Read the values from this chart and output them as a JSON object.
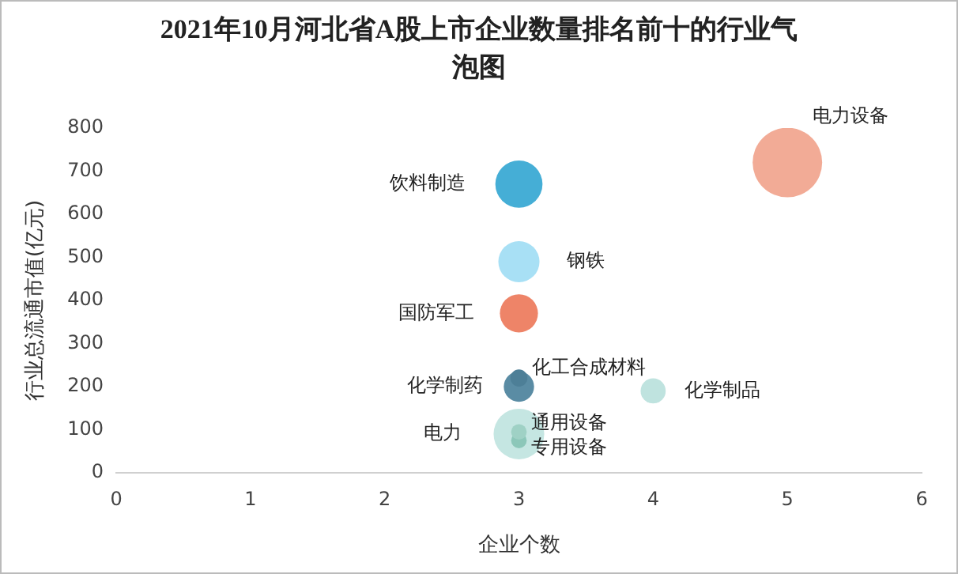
{
  "chart_data": {
    "type": "bubble",
    "title": "2021年10月河北省A股上市企业数量排名前十的行业气泡图",
    "xlabel": "企业个数",
    "ylabel": "行业总流通市值(亿元)",
    "xlim": [
      0,
      6
    ],
    "xticks": [
      0,
      1,
      2,
      3,
      4,
      5,
      6
    ],
    "ylim": [
      0,
      800
    ],
    "yticks": [
      0,
      100,
      200,
      300,
      400,
      500,
      600,
      700,
      800
    ],
    "grid": false,
    "legend": false,
    "series": [
      {
        "name": "电力设备",
        "color": "#f2ab96",
        "x": [
          5
        ],
        "values": [
          720
        ],
        "sizes": [
          1
        ]
      },
      {
        "name": "饮料制造",
        "color": "#45aed6",
        "x": [
          3
        ],
        "values": [
          670
        ],
        "sizes": [
          0.46
        ]
      },
      {
        "name": "钢铁",
        "color": "#a8e0f5",
        "x": [
          3
        ],
        "values": [
          490
        ],
        "sizes": [
          0.35
        ]
      },
      {
        "name": "国防军工",
        "color": "#ee8468",
        "x": [
          3
        ],
        "values": [
          370
        ],
        "sizes": [
          0.3
        ]
      },
      {
        "name": "化学制药",
        "color": "#5a8ca4",
        "x": [
          3
        ],
        "values": [
          200
        ],
        "sizes": [
          0.19
        ]
      },
      {
        "name": "化工合成材料",
        "color": "#4d7f97",
        "x": [
          3
        ],
        "values": [
          220
        ],
        "sizes": [
          0.06
        ]
      },
      {
        "name": "化学制品",
        "color": "#bfe3df",
        "x": [
          4
        ],
        "values": [
          190
        ],
        "sizes": [
          0.13
        ]
      },
      {
        "name": "电力",
        "color": "#c5e6e2",
        "x": [
          3
        ],
        "values": [
          90
        ],
        "sizes": [
          0.53
        ]
      },
      {
        "name": "通用设备",
        "color": "#9fd1c5",
        "x": [
          3
        ],
        "values": [
          95
        ],
        "sizes": [
          0.05
        ]
      },
      {
        "name": "专用设备",
        "color": "#8cc7b9",
        "x": [
          3
        ],
        "values": [
          75
        ],
        "sizes": [
          0.05
        ]
      }
    ]
  }
}
